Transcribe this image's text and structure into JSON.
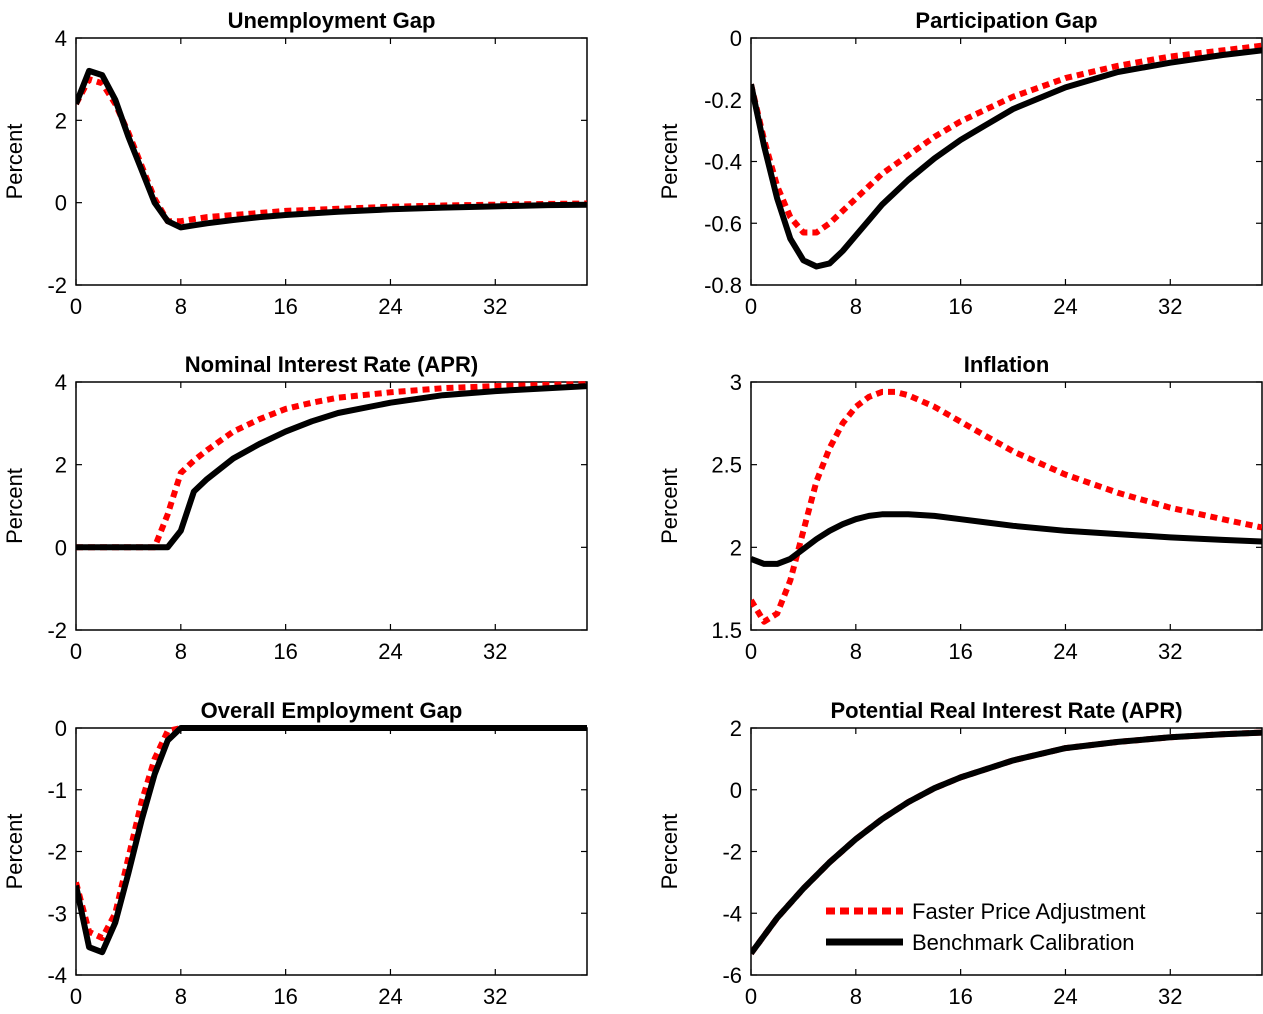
{
  "chart_data": [
    {
      "type": "line",
      "title": "Unemployment Gap",
      "ylabel": "Percent",
      "xlim": [
        0,
        39
      ],
      "ylim": [
        -2,
        4
      ],
      "xticks": [
        0,
        8,
        16,
        24,
        32
      ],
      "yticks": [
        -2,
        0,
        2,
        4
      ],
      "series": [
        {
          "name": "Faster Price Adjustment",
          "style": "dotted",
          "color": "#ff0000",
          "x": [
            0,
            1,
            2,
            3,
            4,
            5,
            6,
            7,
            8,
            9,
            10,
            12,
            14,
            16,
            20,
            24,
            28,
            32,
            36,
            39
          ],
          "y": [
            2.4,
            3.0,
            2.9,
            2.4,
            1.7,
            0.9,
            0.1,
            -0.45,
            -0.45,
            -0.4,
            -0.35,
            -0.3,
            -0.25,
            -0.2,
            -0.15,
            -0.1,
            -0.07,
            -0.05,
            -0.03,
            -0.02
          ]
        },
        {
          "name": "Benchmark Calibration",
          "style": "solid",
          "color": "#000000",
          "x": [
            0,
            1,
            2,
            3,
            4,
            5,
            6,
            7,
            8,
            9,
            10,
            12,
            14,
            16,
            20,
            24,
            28,
            32,
            36,
            39
          ],
          "y": [
            2.4,
            3.2,
            3.1,
            2.5,
            1.6,
            0.8,
            0.0,
            -0.45,
            -0.6,
            -0.55,
            -0.5,
            -0.42,
            -0.35,
            -0.3,
            -0.22,
            -0.16,
            -0.12,
            -0.09,
            -0.06,
            -0.05
          ]
        }
      ]
    },
    {
      "type": "line",
      "title": "Participation Gap",
      "ylabel": "Percent",
      "xlim": [
        0,
        39
      ],
      "ylim": [
        -0.8,
        0
      ],
      "xticks": [
        0,
        8,
        16,
        24,
        32
      ],
      "yticks": [
        -0.8,
        -0.6,
        -0.4,
        -0.2,
        0
      ],
      "ytickLabels": [
        "-0.8",
        "-0.6",
        "-0.4",
        "-0.2",
        "0"
      ],
      "series": [
        {
          "name": "Faster Price Adjustment",
          "style": "dotted",
          "color": "#ff0000",
          "x": [
            0,
            1,
            2,
            3,
            4,
            5,
            6,
            7,
            8,
            9,
            10,
            12,
            14,
            16,
            18,
            20,
            24,
            28,
            32,
            36,
            39
          ],
          "y": [
            -0.15,
            -0.33,
            -0.48,
            -0.58,
            -0.63,
            -0.63,
            -0.6,
            -0.56,
            -0.52,
            -0.48,
            -0.44,
            -0.38,
            -0.32,
            -0.27,
            -0.23,
            -0.19,
            -0.13,
            -0.09,
            -0.06,
            -0.04,
            -0.025
          ]
        },
        {
          "name": "Benchmark Calibration",
          "style": "solid",
          "color": "#000000",
          "x": [
            0,
            1,
            2,
            3,
            4,
            5,
            6,
            7,
            8,
            9,
            10,
            12,
            14,
            16,
            18,
            20,
            24,
            28,
            32,
            36,
            39
          ],
          "y": [
            -0.15,
            -0.35,
            -0.52,
            -0.65,
            -0.72,
            -0.74,
            -0.73,
            -0.69,
            -0.64,
            -0.59,
            -0.54,
            -0.46,
            -0.39,
            -0.33,
            -0.28,
            -0.23,
            -0.16,
            -0.11,
            -0.08,
            -0.055,
            -0.04
          ]
        }
      ]
    },
    {
      "type": "line",
      "title": "Nominal Interest Rate (APR)",
      "ylabel": "Percent",
      "xlim": [
        0,
        39
      ],
      "ylim": [
        -2,
        4
      ],
      "xticks": [
        0,
        8,
        16,
        24,
        32
      ],
      "yticks": [
        -2,
        0,
        2,
        4
      ],
      "series": [
        {
          "name": "Faster Price Adjustment",
          "style": "dotted",
          "color": "#ff0000",
          "x": [
            0,
            5,
            6,
            7,
            8,
            9,
            10,
            12,
            14,
            16,
            18,
            20,
            24,
            28,
            32,
            36,
            39
          ],
          "y": [
            0,
            0,
            0,
            0.8,
            1.8,
            2.1,
            2.35,
            2.8,
            3.1,
            3.35,
            3.5,
            3.62,
            3.75,
            3.85,
            3.9,
            3.93,
            3.95
          ]
        },
        {
          "name": "Benchmark Calibration",
          "style": "solid",
          "color": "#000000",
          "x": [
            0,
            5,
            6,
            7,
            8,
            9,
            10,
            12,
            14,
            16,
            18,
            20,
            24,
            28,
            32,
            36,
            39
          ],
          "y": [
            0,
            0,
            0,
            0,
            0.4,
            1.35,
            1.65,
            2.15,
            2.5,
            2.8,
            3.05,
            3.25,
            3.5,
            3.68,
            3.78,
            3.85,
            3.9
          ]
        }
      ]
    },
    {
      "type": "line",
      "title": "Inflation",
      "ylabel": "Percent",
      "xlim": [
        0,
        39
      ],
      "ylim": [
        1.5,
        3
      ],
      "xticks": [
        0,
        8,
        16,
        24,
        32
      ],
      "yticks": [
        1.5,
        2,
        2.5,
        3
      ],
      "ytickLabels": [
        "1.5",
        "2",
        "2.5",
        "3"
      ],
      "series": [
        {
          "name": "Faster Price Adjustment",
          "style": "dotted",
          "color": "#ff0000",
          "x": [
            0,
            1,
            2,
            3,
            4,
            5,
            6,
            7,
            8,
            9,
            10,
            11,
            12,
            14,
            16,
            18,
            20,
            24,
            28,
            32,
            36,
            39
          ],
          "y": [
            1.68,
            1.55,
            1.6,
            1.8,
            2.1,
            2.4,
            2.6,
            2.75,
            2.85,
            2.91,
            2.94,
            2.94,
            2.92,
            2.85,
            2.76,
            2.67,
            2.58,
            2.44,
            2.33,
            2.24,
            2.17,
            2.12
          ]
        },
        {
          "name": "Benchmark Calibration",
          "style": "solid",
          "color": "#000000",
          "x": [
            0,
            1,
            2,
            3,
            4,
            5,
            6,
            7,
            8,
            9,
            10,
            11,
            12,
            14,
            16,
            18,
            20,
            24,
            28,
            32,
            36,
            39
          ],
          "y": [
            1.93,
            1.9,
            1.9,
            1.93,
            1.99,
            2.05,
            2.1,
            2.14,
            2.17,
            2.19,
            2.2,
            2.2,
            2.2,
            2.19,
            2.17,
            2.15,
            2.13,
            2.1,
            2.08,
            2.06,
            2.045,
            2.035
          ]
        }
      ]
    },
    {
      "type": "line",
      "title": "Overall Employment Gap",
      "ylabel": "Percent",
      "xlim": [
        0,
        39
      ],
      "ylim": [
        -4,
        0
      ],
      "xticks": [
        0,
        8,
        16,
        24,
        32
      ],
      "yticks": [
        -4,
        -3,
        -2,
        -1,
        0
      ],
      "series": [
        {
          "name": "Faster Price Adjustment",
          "style": "dotted",
          "color": "#ff0000",
          "x": [
            0,
            1,
            2,
            3,
            4,
            5,
            6,
            7,
            8,
            12,
            16,
            24,
            32,
            39
          ],
          "y": [
            -2.5,
            -3.3,
            -3.4,
            -3.0,
            -2.1,
            -1.2,
            -0.5,
            -0.05,
            0,
            0,
            0,
            0,
            0,
            0
          ]
        },
        {
          "name": "Benchmark Calibration",
          "style": "solid",
          "color": "#000000",
          "x": [
            0,
            1,
            2,
            3,
            4,
            5,
            6,
            7,
            8,
            12,
            16,
            24,
            32,
            39
          ],
          "y": [
            -2.55,
            -3.55,
            -3.63,
            -3.15,
            -2.35,
            -1.5,
            -0.75,
            -0.2,
            0,
            0,
            0,
            0,
            0,
            0
          ]
        }
      ]
    },
    {
      "type": "line",
      "title": "Potential Real Interest Rate (APR)",
      "ylabel": "Percent",
      "xlim": [
        0,
        39
      ],
      "ylim": [
        -6,
        2
      ],
      "xticks": [
        0,
        8,
        16,
        24,
        32
      ],
      "yticks": [
        -6,
        -4,
        -2,
        0,
        2
      ],
      "legend": {
        "position": "lower-right",
        "entries": [
          "Faster Price Adjustment",
          "Benchmark Calibration"
        ]
      },
      "series": [
        {
          "name": "Faster Price Adjustment",
          "style": "dotted",
          "color": "#ff0000",
          "x": [
            0,
            2,
            4,
            6,
            8,
            10,
            12,
            14,
            16,
            20,
            24,
            28,
            32,
            36,
            39
          ],
          "y": [
            -5.3,
            -4.15,
            -3.2,
            -2.35,
            -1.6,
            -0.95,
            -0.4,
            0.05,
            0.4,
            0.95,
            1.35,
            1.55,
            1.7,
            1.8,
            1.85
          ]
        },
        {
          "name": "Benchmark Calibration",
          "style": "solid",
          "color": "#000000",
          "x": [
            0,
            2,
            4,
            6,
            8,
            10,
            12,
            14,
            16,
            20,
            24,
            28,
            32,
            36,
            39
          ],
          "y": [
            -5.3,
            -4.15,
            -3.2,
            -2.35,
            -1.6,
            -0.95,
            -0.4,
            0.05,
            0.4,
            0.95,
            1.35,
            1.55,
            1.7,
            1.8,
            1.85
          ]
        }
      ]
    }
  ]
}
